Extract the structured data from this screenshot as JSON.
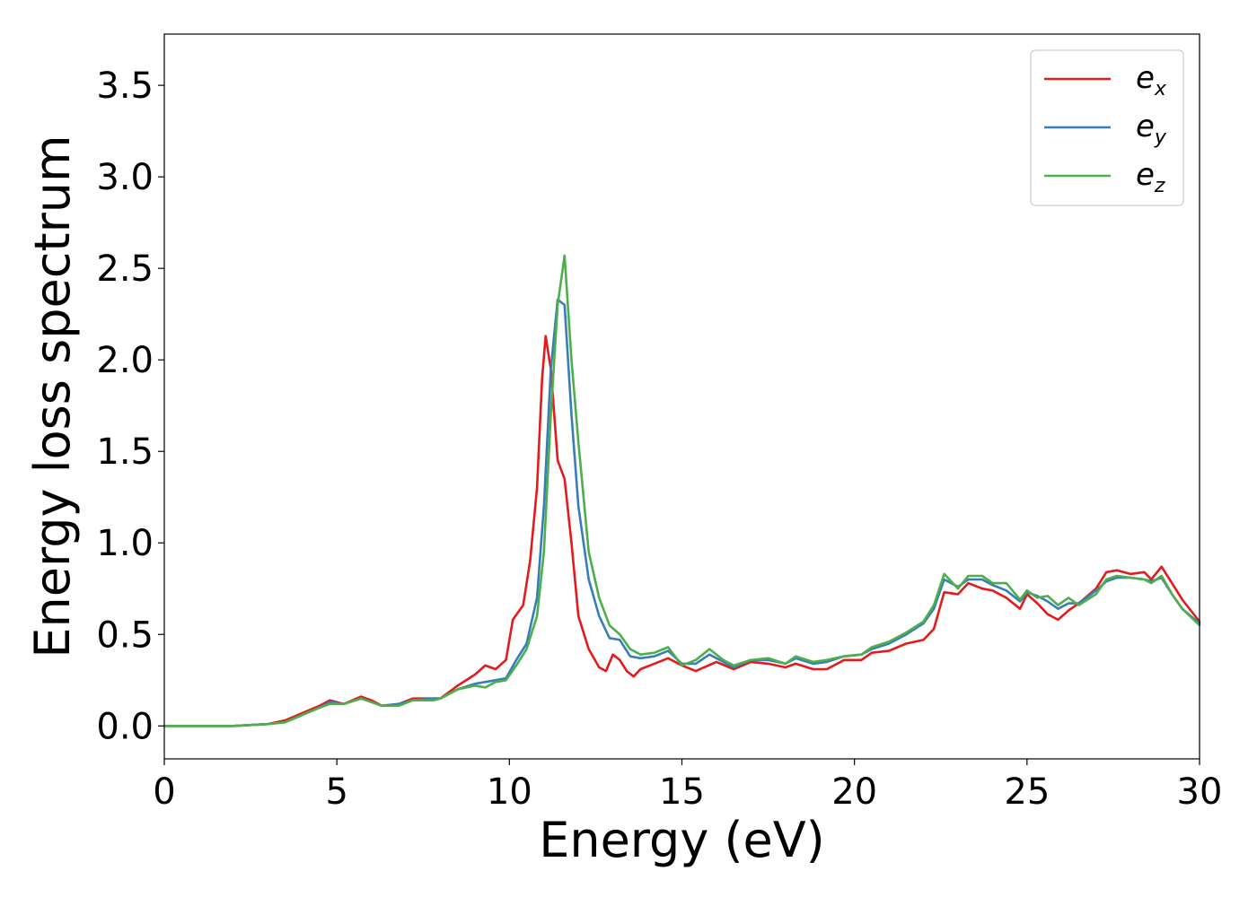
{
  "chart_data": {
    "type": "line",
    "title": "",
    "xlabel": "Energy (eV)",
    "ylabel": "Energy loss spectrum",
    "xlim": [
      0,
      30
    ],
    "ylim": [
      -0.18,
      3.78
    ],
    "xticks": [
      0,
      5,
      10,
      15,
      20,
      25,
      30
    ],
    "xtick_labels": [
      "0",
      "5",
      "10",
      "15",
      "20",
      "25",
      "30"
    ],
    "yticks": [
      0.0,
      0.5,
      1.0,
      1.5,
      2.0,
      2.5,
      3.0,
      3.5
    ],
    "ytick_labels": [
      "0.0",
      "0.5",
      "1.0",
      "1.5",
      "2.0",
      "2.5",
      "3.0",
      "3.5"
    ],
    "grid": false,
    "legend_position": "top-right",
    "series": [
      {
        "name": "e_x",
        "legend_base": "e",
        "legend_sub": "x",
        "color": "#e41a1c",
        "points": [
          [
            0.0,
            0.0
          ],
          [
            2.0,
            0.0
          ],
          [
            3.0,
            0.01
          ],
          [
            3.5,
            0.03
          ],
          [
            4.0,
            0.07
          ],
          [
            4.5,
            0.11
          ],
          [
            4.8,
            0.14
          ],
          [
            5.2,
            0.12
          ],
          [
            5.7,
            0.16
          ],
          [
            6.0,
            0.14
          ],
          [
            6.3,
            0.11
          ],
          [
            6.8,
            0.12
          ],
          [
            7.2,
            0.15
          ],
          [
            7.8,
            0.15
          ],
          [
            8.0,
            0.15
          ],
          [
            8.5,
            0.22
          ],
          [
            9.0,
            0.28
          ],
          [
            9.3,
            0.33
          ],
          [
            9.6,
            0.31
          ],
          [
            9.9,
            0.36
          ],
          [
            10.1,
            0.58
          ],
          [
            10.4,
            0.66
          ],
          [
            10.6,
            0.9
          ],
          [
            10.8,
            1.3
          ],
          [
            10.95,
            1.9
          ],
          [
            11.05,
            2.13
          ],
          [
            11.2,
            1.95
          ],
          [
            11.4,
            1.45
          ],
          [
            11.6,
            1.35
          ],
          [
            11.8,
            1.0
          ],
          [
            12.0,
            0.6
          ],
          [
            12.3,
            0.42
          ],
          [
            12.6,
            0.32
          ],
          [
            12.8,
            0.3
          ],
          [
            13.0,
            0.39
          ],
          [
            13.2,
            0.36
          ],
          [
            13.4,
            0.3
          ],
          [
            13.6,
            0.27
          ],
          [
            13.8,
            0.31
          ],
          [
            14.2,
            0.34
          ],
          [
            14.6,
            0.37
          ],
          [
            15.0,
            0.33
          ],
          [
            15.4,
            0.3
          ],
          [
            16.0,
            0.35
          ],
          [
            16.5,
            0.31
          ],
          [
            17.0,
            0.35
          ],
          [
            17.5,
            0.34
          ],
          [
            18.0,
            0.32
          ],
          [
            18.3,
            0.34
          ],
          [
            18.8,
            0.31
          ],
          [
            19.2,
            0.31
          ],
          [
            19.7,
            0.36
          ],
          [
            20.2,
            0.36
          ],
          [
            20.5,
            0.4
          ],
          [
            21.0,
            0.41
          ],
          [
            21.5,
            0.45
          ],
          [
            22.0,
            0.47
          ],
          [
            22.3,
            0.53
          ],
          [
            22.6,
            0.73
          ],
          [
            23.0,
            0.72
          ],
          [
            23.3,
            0.78
          ],
          [
            23.7,
            0.75
          ],
          [
            24.0,
            0.74
          ],
          [
            24.4,
            0.7
          ],
          [
            24.8,
            0.64
          ],
          [
            25.0,
            0.72
          ],
          [
            25.3,
            0.67
          ],
          [
            25.6,
            0.61
          ],
          [
            25.9,
            0.58
          ],
          [
            26.2,
            0.63
          ],
          [
            26.5,
            0.67
          ],
          [
            27.0,
            0.75
          ],
          [
            27.3,
            0.84
          ],
          [
            27.6,
            0.85
          ],
          [
            28.0,
            0.83
          ],
          [
            28.4,
            0.84
          ],
          [
            28.6,
            0.8
          ],
          [
            28.9,
            0.87
          ],
          [
            29.2,
            0.78
          ],
          [
            29.5,
            0.69
          ],
          [
            30.0,
            0.57
          ]
        ]
      },
      {
        "name": "e_y",
        "legend_base": "e",
        "legend_sub": "y",
        "color": "#377eb8",
        "points": [
          [
            0.0,
            0.0
          ],
          [
            2.0,
            0.0
          ],
          [
            3.0,
            0.01
          ],
          [
            3.5,
            0.02
          ],
          [
            4.0,
            0.06
          ],
          [
            4.5,
            0.1
          ],
          [
            4.8,
            0.13
          ],
          [
            5.2,
            0.12
          ],
          [
            5.7,
            0.15
          ],
          [
            6.0,
            0.13
          ],
          [
            6.3,
            0.11
          ],
          [
            6.8,
            0.12
          ],
          [
            7.2,
            0.14
          ],
          [
            7.8,
            0.15
          ],
          [
            8.0,
            0.15
          ],
          [
            8.5,
            0.2
          ],
          [
            9.0,
            0.23
          ],
          [
            9.3,
            0.24
          ],
          [
            9.6,
            0.25
          ],
          [
            9.9,
            0.26
          ],
          [
            10.2,
            0.36
          ],
          [
            10.5,
            0.45
          ],
          [
            10.8,
            0.7
          ],
          [
            11.0,
            1.2
          ],
          [
            11.2,
            1.95
          ],
          [
            11.4,
            2.33
          ],
          [
            11.6,
            2.3
          ],
          [
            11.8,
            1.7
          ],
          [
            12.0,
            1.2
          ],
          [
            12.3,
            0.8
          ],
          [
            12.6,
            0.6
          ],
          [
            12.9,
            0.48
          ],
          [
            13.2,
            0.47
          ],
          [
            13.5,
            0.38
          ],
          [
            13.8,
            0.37
          ],
          [
            14.2,
            0.38
          ],
          [
            14.6,
            0.41
          ],
          [
            15.0,
            0.34
          ],
          [
            15.4,
            0.34
          ],
          [
            15.8,
            0.39
          ],
          [
            16.2,
            0.35
          ],
          [
            16.5,
            0.32
          ],
          [
            17.0,
            0.36
          ],
          [
            17.5,
            0.36
          ],
          [
            18.0,
            0.34
          ],
          [
            18.3,
            0.37
          ],
          [
            18.8,
            0.34
          ],
          [
            19.2,
            0.35
          ],
          [
            19.7,
            0.38
          ],
          [
            20.2,
            0.39
          ],
          [
            20.5,
            0.42
          ],
          [
            21.0,
            0.45
          ],
          [
            21.5,
            0.5
          ],
          [
            22.0,
            0.56
          ],
          [
            22.3,
            0.64
          ],
          [
            22.6,
            0.8
          ],
          [
            23.0,
            0.76
          ],
          [
            23.3,
            0.8
          ],
          [
            23.7,
            0.8
          ],
          [
            24.0,
            0.77
          ],
          [
            24.4,
            0.74
          ],
          [
            24.8,
            0.68
          ],
          [
            25.0,
            0.73
          ],
          [
            25.3,
            0.71
          ],
          [
            25.6,
            0.68
          ],
          [
            25.9,
            0.64
          ],
          [
            26.2,
            0.67
          ],
          [
            26.5,
            0.67
          ],
          [
            27.0,
            0.74
          ],
          [
            27.3,
            0.79
          ],
          [
            27.6,
            0.81
          ],
          [
            28.0,
            0.81
          ],
          [
            28.4,
            0.8
          ],
          [
            28.6,
            0.79
          ],
          [
            28.9,
            0.81
          ],
          [
            29.2,
            0.72
          ],
          [
            29.5,
            0.64
          ],
          [
            30.0,
            0.56
          ]
        ]
      },
      {
        "name": "e_z",
        "legend_base": "e",
        "legend_sub": "z",
        "color": "#4daf4a",
        "points": [
          [
            0.0,
            0.0
          ],
          [
            2.0,
            0.0
          ],
          [
            3.0,
            0.01
          ],
          [
            3.5,
            0.02
          ],
          [
            4.0,
            0.06
          ],
          [
            4.5,
            0.1
          ],
          [
            4.8,
            0.12
          ],
          [
            5.2,
            0.12
          ],
          [
            5.7,
            0.15
          ],
          [
            6.0,
            0.13
          ],
          [
            6.3,
            0.11
          ],
          [
            6.8,
            0.11
          ],
          [
            7.2,
            0.14
          ],
          [
            7.8,
            0.14
          ],
          [
            8.0,
            0.15
          ],
          [
            8.5,
            0.2
          ],
          [
            9.0,
            0.22
          ],
          [
            9.3,
            0.21
          ],
          [
            9.6,
            0.24
          ],
          [
            9.9,
            0.25
          ],
          [
            10.2,
            0.33
          ],
          [
            10.5,
            0.42
          ],
          [
            10.8,
            0.6
          ],
          [
            11.0,
            0.95
          ],
          [
            11.2,
            1.7
          ],
          [
            11.4,
            2.3
          ],
          [
            11.6,
            2.57
          ],
          [
            11.8,
            2.0
          ],
          [
            12.0,
            1.55
          ],
          [
            12.3,
            0.95
          ],
          [
            12.6,
            0.7
          ],
          [
            12.9,
            0.55
          ],
          [
            13.2,
            0.5
          ],
          [
            13.5,
            0.42
          ],
          [
            13.8,
            0.39
          ],
          [
            14.2,
            0.4
          ],
          [
            14.6,
            0.43
          ],
          [
            15.0,
            0.33
          ],
          [
            15.4,
            0.36
          ],
          [
            15.8,
            0.42
          ],
          [
            16.2,
            0.36
          ],
          [
            16.5,
            0.33
          ],
          [
            17.0,
            0.36
          ],
          [
            17.5,
            0.37
          ],
          [
            18.0,
            0.34
          ],
          [
            18.3,
            0.38
          ],
          [
            18.8,
            0.35
          ],
          [
            19.2,
            0.36
          ],
          [
            19.7,
            0.38
          ],
          [
            20.2,
            0.39
          ],
          [
            20.5,
            0.43
          ],
          [
            21.0,
            0.46
          ],
          [
            21.5,
            0.51
          ],
          [
            22.0,
            0.57
          ],
          [
            22.3,
            0.66
          ],
          [
            22.6,
            0.83
          ],
          [
            23.0,
            0.75
          ],
          [
            23.3,
            0.82
          ],
          [
            23.7,
            0.82
          ],
          [
            24.0,
            0.78
          ],
          [
            24.4,
            0.78
          ],
          [
            24.8,
            0.69
          ],
          [
            25.0,
            0.74
          ],
          [
            25.3,
            0.7
          ],
          [
            25.6,
            0.71
          ],
          [
            25.9,
            0.66
          ],
          [
            26.2,
            0.7
          ],
          [
            26.5,
            0.66
          ],
          [
            27.0,
            0.72
          ],
          [
            27.3,
            0.8
          ],
          [
            27.6,
            0.82
          ],
          [
            28.0,
            0.81
          ],
          [
            28.4,
            0.8
          ],
          [
            28.6,
            0.78
          ],
          [
            28.9,
            0.82
          ],
          [
            29.2,
            0.72
          ],
          [
            29.5,
            0.64
          ],
          [
            30.0,
            0.55
          ]
        ]
      }
    ]
  }
}
